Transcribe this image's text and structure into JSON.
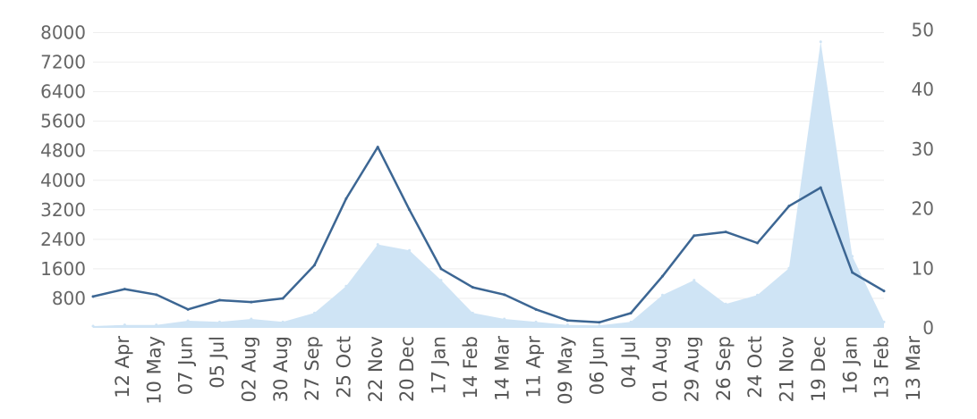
{
  "chart_data": {
    "type": "line",
    "title": "",
    "xlabel": "",
    "ylabel": "",
    "y2label": "",
    "left_axis": {
      "ylim": [
        0,
        8400
      ],
      "ticks": [
        800,
        1600,
        2400,
        3200,
        4000,
        4800,
        5600,
        6400,
        7200,
        8000
      ]
    },
    "right_axis": {
      "ylim": [
        0,
        52
      ],
      "ticks": [
        0,
        10,
        20,
        30,
        40,
        50
      ]
    },
    "x_ticks": [
      "12 Apr",
      "10 May",
      "07 Jun",
      "05 Jul",
      "02 Aug",
      "30 Aug",
      "27 Sep",
      "25 Oct",
      "22 Nov",
      "20 Dec",
      "17 Jan",
      "14 Feb",
      "14 Mar",
      "11 Apr",
      "09 May",
      "06 Jun",
      "04 Jul",
      "01 Aug",
      "29 Aug",
      "26 Sep",
      "24 Oct",
      "21 Nov",
      "19 Dec",
      "16 Jan",
      "13 Feb",
      "13 Mar"
    ],
    "grid": true,
    "legend": "none",
    "colors": {
      "line": "#3c6693",
      "area": "#cfe4f5"
    },
    "series": [
      {
        "type": "line",
        "axis": "left",
        "x": [
          "12 Apr",
          "10 May",
          "07 Jun",
          "05 Jul",
          "02 Aug",
          "30 Aug",
          "27 Sep",
          "25 Oct",
          "22 Nov",
          "20 Dec",
          "17 Jan",
          "14 Feb",
          "14 Mar",
          "11 Apr",
          "09 May",
          "06 Jun",
          "04 Jul",
          "01 Aug",
          "29 Aug",
          "26 Sep",
          "24 Oct",
          "21 Nov",
          "19 Dec",
          "16 Jan",
          "13 Feb",
          "13 Mar"
        ],
        "values": [
          850,
          1050,
          900,
          500,
          750,
          700,
          800,
          1700,
          3500,
          4900,
          3200,
          1600,
          1100,
          900,
          500,
          200,
          150,
          400,
          1400,
          2500,
          2600,
          2300,
          3300,
          3800,
          1500,
          1000
        ]
      },
      {
        "type": "area",
        "axis": "right",
        "x": [
          "12 Apr",
          "10 May",
          "07 Jun",
          "05 Jul",
          "02 Aug",
          "30 Aug",
          "27 Sep",
          "25 Oct",
          "22 Nov",
          "20 Dec",
          "17 Jan",
          "14 Feb",
          "14 Mar",
          "11 Apr",
          "09 May",
          "06 Jun",
          "04 Jul",
          "01 Aug",
          "29 Aug",
          "26 Sep",
          "24 Oct",
          "21 Nov",
          "19 Dec",
          "16 Jan",
          "13 Feb",
          "13 Mar"
        ],
        "values": [
          0.3,
          0.5,
          0.5,
          1.2,
          1.0,
          1.5,
          1.0,
          2.5,
          7,
          14,
          13,
          8,
          2.5,
          1.5,
          1.0,
          0.5,
          0.4,
          1.0,
          5.5,
          8,
          4,
          5.5,
          10,
          48,
          12,
          1.0
        ]
      }
    ]
  }
}
